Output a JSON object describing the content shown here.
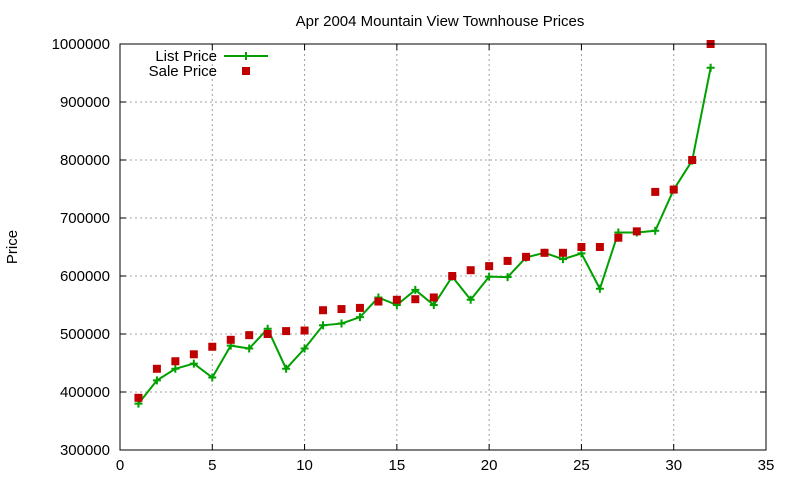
{
  "chart_data": {
    "type": "line",
    "title": "Apr 2004 Mountain View Townhouse Prices",
    "xlabel": "",
    "ylabel": "Price",
    "xlim": [
      0,
      35
    ],
    "ylim": [
      300000,
      1000000
    ],
    "xticks": [
      0,
      5,
      10,
      15,
      20,
      25,
      30,
      35
    ],
    "yticks": [
      300000,
      400000,
      500000,
      600000,
      700000,
      800000,
      900000,
      1000000
    ],
    "grid": true,
    "legend_position": "top-left",
    "series": [
      {
        "name": "List Price",
        "style": "line-plus",
        "color": "#00a000",
        "x": [
          1,
          2,
          3,
          4,
          5,
          6,
          7,
          8,
          9,
          10,
          11,
          12,
          13,
          14,
          15,
          16,
          17,
          18,
          19,
          20,
          21,
          22,
          23,
          24,
          25,
          26,
          27,
          28,
          29,
          30,
          31,
          32
        ],
        "y": [
          380000,
          420000,
          440000,
          449000,
          425000,
          480000,
          475000,
          509000,
          440000,
          475000,
          515000,
          518000,
          529000,
          563000,
          550000,
          576000,
          550000,
          599000,
          559000,
          599000,
          598000,
          632000,
          640000,
          629000,
          639000,
          578000,
          675000,
          675000,
          678000,
          749000,
          799000,
          959000
        ]
      },
      {
        "name": "Sale Price",
        "style": "square-markers",
        "color": "#c00000",
        "x": [
          1,
          2,
          3,
          4,
          5,
          6,
          7,
          8,
          9,
          10,
          11,
          12,
          13,
          14,
          15,
          16,
          17,
          18,
          19,
          20,
          21,
          22,
          23,
          24,
          25,
          26,
          27,
          28,
          29,
          30,
          31,
          32
        ],
        "y": [
          390000,
          440000,
          453000,
          465000,
          478000,
          490000,
          498000,
          500000,
          505000,
          506000,
          541000,
          543000,
          545000,
          556000,
          559000,
          560000,
          563000,
          600000,
          610000,
          617000,
          626000,
          633000,
          640000,
          640000,
          650000,
          650000,
          666000,
          677000,
          745000,
          749000,
          800000,
          1000000
        ]
      }
    ]
  }
}
